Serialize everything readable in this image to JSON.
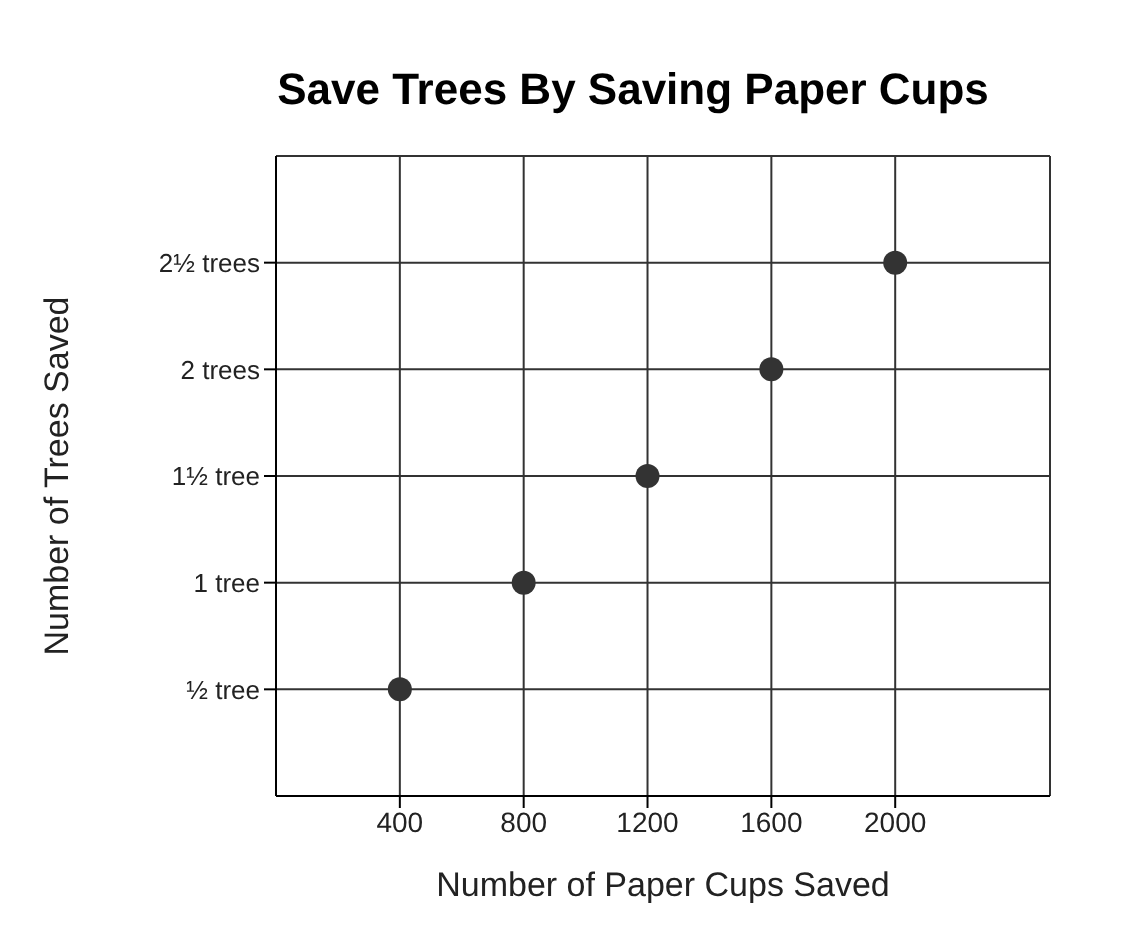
{
  "chart_data": {
    "type": "scatter",
    "title": "Save Trees By Saving Paper Cups",
    "xlabel": "Number of Paper Cups Saved",
    "ylabel": "Number of Trees Saved",
    "x": [
      400,
      800,
      1200,
      1600,
      2000
    ],
    "values": [
      0.5,
      1,
      1.5,
      2,
      2.5
    ],
    "color": "#333333",
    "marker": "circle",
    "grid": true,
    "xlim": [
      0,
      2500
    ],
    "xticks": [
      400,
      800,
      1200,
      1600,
      2000
    ],
    "ylim": [
      0,
      3
    ],
    "yticks": [
      {
        "value": 0.5,
        "label": "½ tree"
      },
      {
        "value": 1,
        "label": "1 tree"
      },
      {
        "value": 1.5,
        "label": "1½ tree"
      },
      {
        "value": 2,
        "label": "2 trees"
      },
      {
        "value": 2.5,
        "label": "2½ trees"
      }
    ]
  }
}
